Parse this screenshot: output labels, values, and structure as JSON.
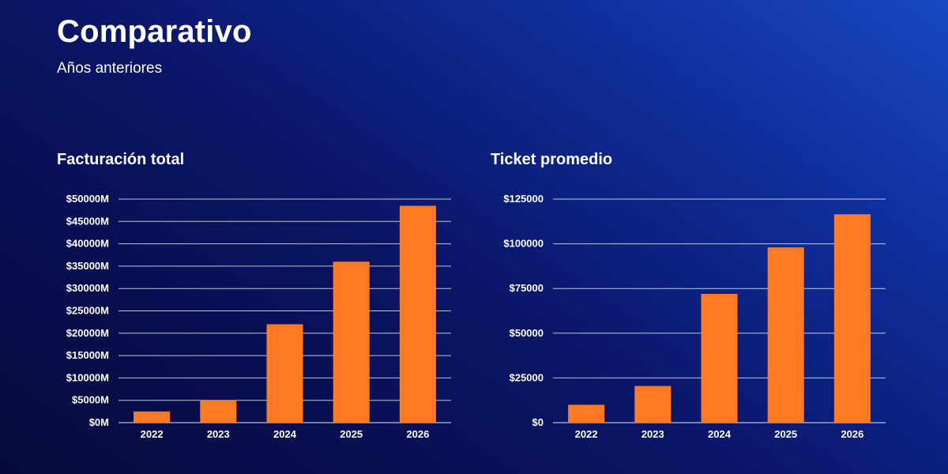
{
  "header": {
    "title": "Comparativo",
    "subtitle": "Años anteriores"
  },
  "colors": {
    "bar": "#ff7a22",
    "background_dark": "#06093a",
    "background_light": "#1a48c0"
  },
  "chart_data": [
    {
      "type": "bar",
      "title": "Facturación total",
      "categories": [
        "2022",
        "2023",
        "2024",
        "2025",
        "2026"
      ],
      "values": [
        2500,
        5000,
        22000,
        36000,
        48500
      ],
      "ylim": [
        0,
        50000
      ],
      "yticks": [
        0,
        5000,
        10000,
        15000,
        20000,
        25000,
        30000,
        35000,
        40000,
        45000,
        50000
      ],
      "ytick_labels": [
        "$0M",
        "$5000M",
        "$10000M",
        "$15000M",
        "$20000M",
        "$25000M",
        "$30000M",
        "$35000M",
        "$40000M",
        "$45000M",
        "$50000M"
      ],
      "xlabel": "",
      "ylabel": "",
      "grid": true
    },
    {
      "type": "bar",
      "title": "Ticket promedio",
      "categories": [
        "2022",
        "2023",
        "2024",
        "2025",
        "2026"
      ],
      "values": [
        10000,
        20500,
        72000,
        98000,
        116500
      ],
      "ylim": [
        0,
        125000
      ],
      "yticks": [
        0,
        25000,
        50000,
        75000,
        100000,
        125000
      ],
      "ytick_labels": [
        "$0",
        "$25000",
        "$50000",
        "$75000",
        "$100000",
        "$125000"
      ],
      "xlabel": "",
      "ylabel": "",
      "grid": true
    }
  ]
}
